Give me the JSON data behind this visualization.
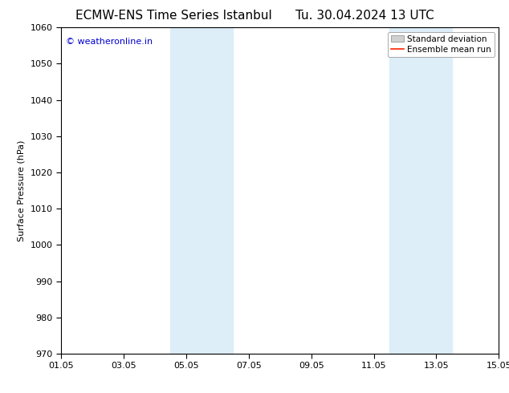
{
  "title_left": "ECMW-ENS Time Series Istanbul",
  "title_right": "Tu. 30.04.2024 13 UTC",
  "ylabel": "Surface Pressure (hPa)",
  "ylim": [
    970,
    1060
  ],
  "yticks": [
    970,
    980,
    990,
    1000,
    1010,
    1020,
    1030,
    1040,
    1050,
    1060
  ],
  "xtick_labels": [
    "01.05",
    "03.05",
    "05.05",
    "07.05",
    "09.05",
    "11.05",
    "13.05",
    "15.05"
  ],
  "xtick_positions": [
    0,
    2,
    4,
    6,
    8,
    10,
    12,
    14
  ],
  "xmin": 0,
  "xmax": 14,
  "shaded_bands": [
    {
      "x_start": 3.5,
      "x_end": 5.5,
      "color": "#ddeef8"
    },
    {
      "x_start": 10.5,
      "x_end": 12.5,
      "color": "#ddeef8"
    }
  ],
  "watermark_text": "© weatheronline.in",
  "watermark_color": "#0000cc",
  "watermark_fontsize": 8,
  "legend_std_label": "Standard deviation",
  "legend_mean_label": "Ensemble mean run",
  "legend_std_color": "#d0d0d0",
  "legend_mean_color": "#ff2200",
  "background_color": "#ffffff",
  "axes_bg_color": "#ffffff",
  "title_fontsize": 11,
  "ylabel_fontsize": 8,
  "tick_fontsize": 8,
  "legend_fontsize": 7.5
}
